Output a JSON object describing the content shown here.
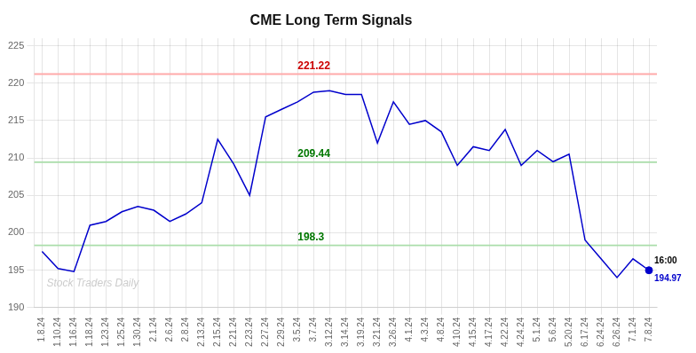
{
  "chart_data": {
    "type": "line",
    "title": "CME Long Term Signals",
    "categories": [
      "1.8.24",
      "1.10.24",
      "1.16.24",
      "1.18.24",
      "1.23.24",
      "1.25.24",
      "1.30.24",
      "2.1.24",
      "2.6.24",
      "2.8.24",
      "2.13.24",
      "2.15.24",
      "2.21.24",
      "2.23.24",
      "2.27.24",
      "2.29.24",
      "3.5.24",
      "3.7.24",
      "3.12.24",
      "3.14.24",
      "3.19.24",
      "3.21.24",
      "3.26.24",
      "4.1.24",
      "4.3.24",
      "4.8.24",
      "4.10.24",
      "4.15.24",
      "4.17.24",
      "4.22.24",
      "4.24.24",
      "5.1.24",
      "5.6.24",
      "5.20.24",
      "6.17.24",
      "6.24.24",
      "6.26.24",
      "7.1.24",
      "7.8.24"
    ],
    "values": [
      197.5,
      195.2,
      194.8,
      201.0,
      201.5,
      202.8,
      203.5,
      203.0,
      201.5,
      202.5,
      204.0,
      212.5,
      209.2,
      205.0,
      215.5,
      216.5,
      217.5,
      218.8,
      219.0,
      218.5,
      218.5,
      212.0,
      217.5,
      214.5,
      215.0,
      213.5,
      209.0,
      211.5,
      211.0,
      213.8,
      209.0,
      211.0,
      209.5,
      210.5,
      199.0,
      196.5,
      194.0,
      196.5,
      194.97
    ],
    "color": "#0000cc",
    "ylim": [
      190,
      226
    ],
    "yticks": [
      190,
      195,
      200,
      205,
      210,
      215,
      220,
      225
    ],
    "grid": true,
    "annotations": [
      {
        "type": "hline",
        "y": 221.22,
        "label": "221.22",
        "color": "#ffaaaa",
        "label_color": "#cc0000"
      },
      {
        "type": "hline",
        "y": 209.44,
        "label": "209.44",
        "color": "#aaddaa",
        "label_color": "#007700"
      },
      {
        "type": "hline",
        "y": 198.3,
        "label": "198.3",
        "color": "#aaddaa",
        "label_color": "#007700"
      },
      {
        "type": "point",
        "x": "7.8.24",
        "y": 194.97,
        "text": "16:00",
        "label": "194.97",
        "color": "#0000cc"
      },
      {
        "type": "text",
        "text": "Stock Traders Daily",
        "color": "#cccccc"
      }
    ]
  }
}
